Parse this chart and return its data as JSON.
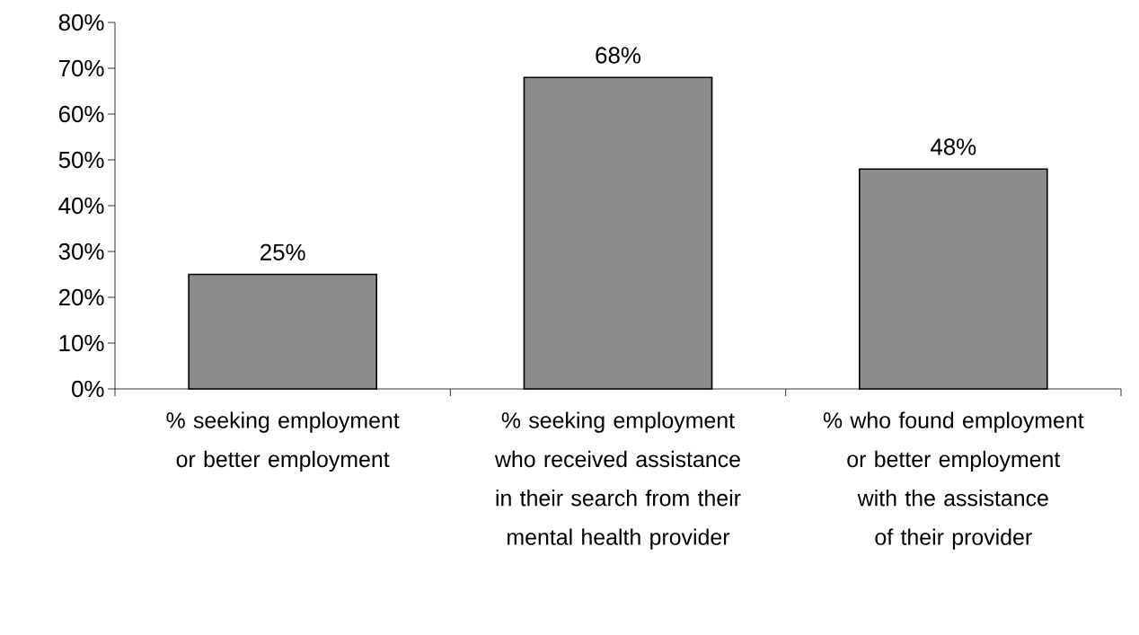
{
  "chart_data": {
    "type": "bar",
    "categories": [
      "% seeking employment or better employment",
      "% seeking employment who received assistance in their search from their mental health provider",
      "% who found employment or better employment with the assistance of their provider"
    ],
    "values": [
      25,
      68,
      48
    ],
    "value_labels": [
      "25%",
      "68%",
      "48%"
    ],
    "color": "#8c8c8c",
    "ylim": [
      0,
      80
    ],
    "yticks": [
      {
        "value": 0,
        "label": "0%"
      },
      {
        "value": 10,
        "label": "10%"
      },
      {
        "value": 20,
        "label": "20%"
      },
      {
        "value": 30,
        "label": "30%"
      },
      {
        "value": 40,
        "label": "40%"
      },
      {
        "value": 50,
        "label": "50%"
      },
      {
        "value": 60,
        "label": "60%"
      },
      {
        "value": 70,
        "label": "70%"
      },
      {
        "value": 80,
        "label": "80%"
      }
    ],
    "grid": false
  }
}
